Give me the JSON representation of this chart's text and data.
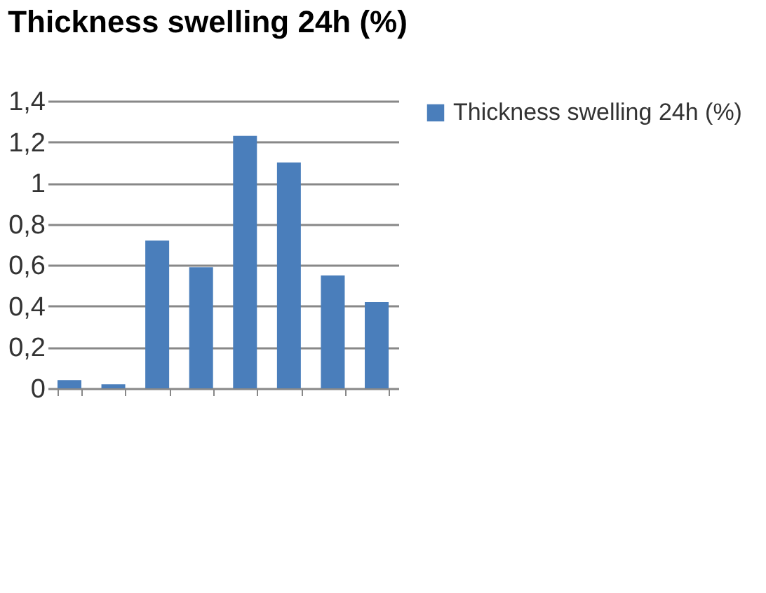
{
  "chart_data": {
    "type": "bar",
    "title": "Thickness swelling 24h (%)",
    "categories": [
      null,
      null,
      null,
      null,
      null,
      null,
      null,
      null
    ],
    "series": [
      {
        "name": "Thickness swelling 24h (%)",
        "color": "#4a7ebb",
        "values": [
          0.04,
          0.02,
          0.72,
          0.59,
          1.23,
          1.1,
          0.55,
          0.42
        ]
      }
    ],
    "ylim": [
      0,
      1.4
    ],
    "yticks": [
      0,
      {
        "value": 0.2,
        "label": "0,2"
      },
      {
        "value": 0.4,
        "label": "0,4"
      },
      {
        "value": 0.6,
        "label": "0,6"
      },
      {
        "value": 0.8,
        "label": "0,8"
      },
      1,
      {
        "value": 1.2,
        "label": "1,2"
      },
      {
        "value": 1.4,
        "label": "1,4"
      }
    ],
    "grid": "y",
    "legend": "right"
  }
}
